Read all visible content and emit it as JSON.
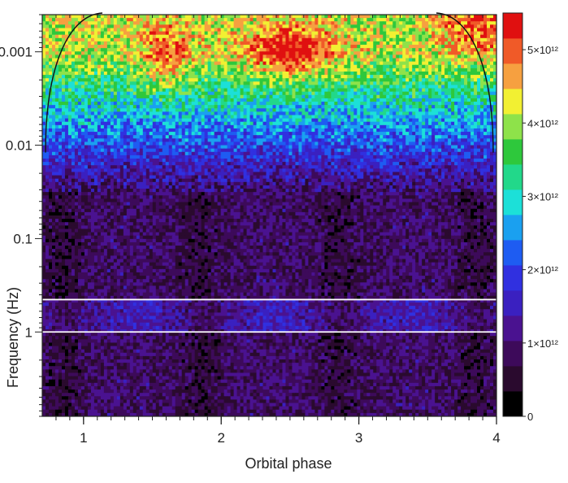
{
  "chart_data": {
    "type": "heatmap",
    "title": "",
    "xlabel": "Orbital phase",
    "ylabel": "Frequency (Hz)",
    "x_range": [
      0.7,
      4.0
    ],
    "x_ticks": [
      {
        "value": 1,
        "label": "1"
      },
      {
        "value": 2,
        "label": "2"
      },
      {
        "value": 3,
        "label": "3"
      },
      {
        "value": 4,
        "label": "4"
      }
    ],
    "y_scale": "log",
    "y_axis_inverted": true,
    "y_range": [
      0.0004,
      8
    ],
    "y_ticks": [
      {
        "value": 0.001,
        "label": "0.001"
      },
      {
        "value": 0.01,
        "label": "0.01"
      },
      {
        "value": 0.1,
        "label": "0.1"
      },
      {
        "value": 1,
        "label": "1"
      }
    ],
    "reference_lines_frequency": [
      0.45,
      1.0
    ],
    "colorbar": {
      "min": 0,
      "max": 5500000000000.0,
      "ticks": [
        {
          "value": 0,
          "label": "0"
        },
        {
          "value": 1000000000000.0,
          "label": "1×10¹²"
        },
        {
          "value": 2000000000000.0,
          "label": "2×10¹²"
        },
        {
          "value": 3000000000000.0,
          "label": "3×10¹²"
        },
        {
          "value": 4000000000000.0,
          "label": "4×10¹²"
        },
        {
          "value": 5000000000000.0,
          "label": "5×10¹²"
        }
      ],
      "colors": [
        "#000000",
        "#2a0a2e",
        "#3d0a5a",
        "#4a1290",
        "#3a20c0",
        "#3030e0",
        "#1e5cf2",
        "#1aa0f0",
        "#1ce0d8",
        "#22d88a",
        "#2ec83c",
        "#8ee24a",
        "#f2f032",
        "#f6a040",
        "#f05a28",
        "#e01010"
      ]
    },
    "cone_of_influence": true,
    "grid": false
  }
}
